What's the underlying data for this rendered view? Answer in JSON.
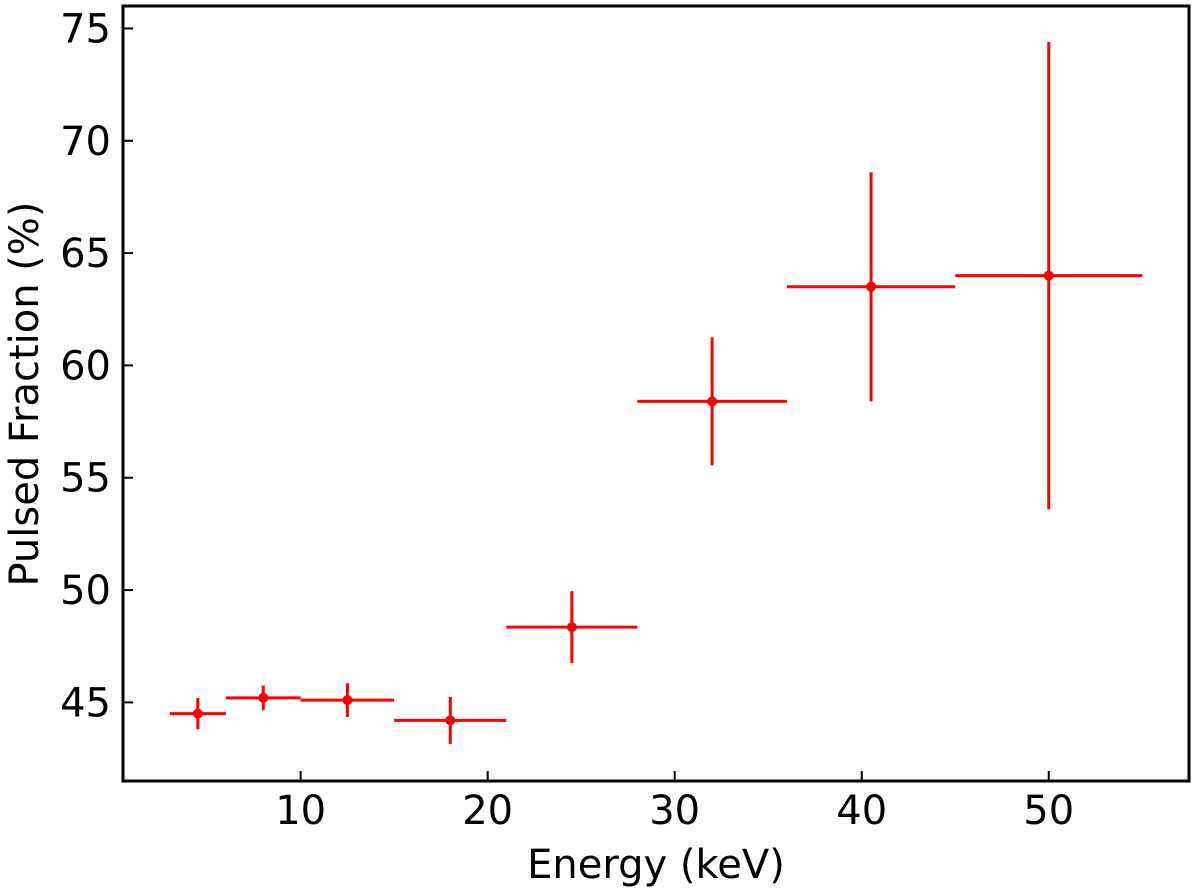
{
  "chart_data": {
    "type": "scatter",
    "title": "",
    "xlabel": "Energy (keV)",
    "ylabel": "Pulsed Fraction (%)",
    "xlim": [
      0.5,
      57.5
    ],
    "ylim": [
      41.5,
      76
    ],
    "xticks": [
      10,
      20,
      30,
      40,
      50
    ],
    "yticks": [
      45,
      50,
      55,
      60,
      65,
      70,
      75
    ],
    "xtick_labels": [
      "10",
      "20",
      "30",
      "40",
      "50"
    ],
    "ytick_labels": [
      "45",
      "50",
      "55",
      "60",
      "65",
      "70",
      "75"
    ],
    "grid": false,
    "color": "#ff0000",
    "points": [
      {
        "x": 4.5,
        "xerr": 1.5,
        "y": 44.5,
        "yerr": 0.7
      },
      {
        "x": 8.0,
        "xerr": 2.0,
        "y": 45.2,
        "yerr": 0.55
      },
      {
        "x": 12.5,
        "xerr": 2.5,
        "y": 45.1,
        "yerr": 0.75
      },
      {
        "x": 18.0,
        "xerr": 3.0,
        "y": 44.2,
        "yerr": 1.05
      },
      {
        "x": 24.5,
        "xerr": 3.5,
        "y": 48.35,
        "yerr": 1.6
      },
      {
        "x": 32.0,
        "xerr": 4.0,
        "y": 58.4,
        "yerr": 2.85
      },
      {
        "x": 40.5,
        "xerr": 4.5,
        "y": 63.5,
        "yerr": 5.1
      },
      {
        "x": 50.0,
        "xerr": 5.0,
        "y": 64.0,
        "yerr": 10.4
      }
    ]
  }
}
